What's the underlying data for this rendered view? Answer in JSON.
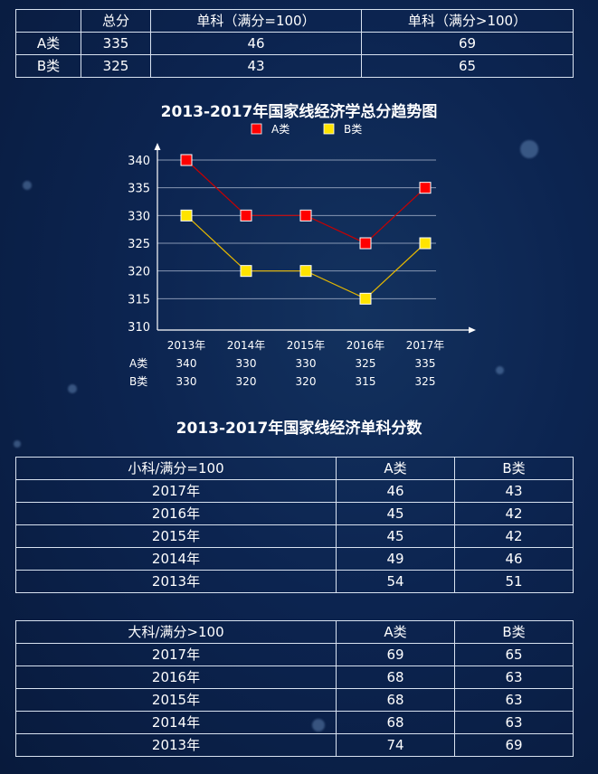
{
  "summary_table": {
    "headers": [
      "",
      "总分",
      "单科（满分=100）",
      "单科（满分>100）"
    ],
    "rows": [
      [
        "A类",
        "335",
        "46",
        "69"
      ],
      [
        "B类",
        "325",
        "43",
        "65"
      ]
    ]
  },
  "chart_data": {
    "type": "line",
    "title": "2013-2017年国家线经济学总分趋势图",
    "categories": [
      "2013年",
      "2014年",
      "2015年",
      "2016年",
      "2017年"
    ],
    "series": [
      {
        "name": "A类",
        "values": [
          340,
          330,
          330,
          325,
          335
        ],
        "color": "#ff0000"
      },
      {
        "name": "B类",
        "values": [
          330,
          320,
          320,
          315,
          325
        ],
        "color": "#ffe400"
      }
    ],
    "yticks": [
      310,
      315,
      320,
      325,
      330,
      335,
      340
    ],
    "ylim": [
      310,
      340
    ],
    "grid": true,
    "legend": "top"
  },
  "single_title": "2013-2017年国家线经济单科分数",
  "small_table": {
    "headers": [
      "小科/满分=100",
      "A类",
      "B类"
    ],
    "rows": [
      [
        "2017年",
        "46",
        "43"
      ],
      [
        "2016年",
        "45",
        "42"
      ],
      [
        "2015年",
        "45",
        "42"
      ],
      [
        "2014年",
        "49",
        "46"
      ],
      [
        "2013年",
        "54",
        "51"
      ]
    ]
  },
  "large_table": {
    "headers": [
      "大科/满分>100",
      "A类",
      "B类"
    ],
    "rows": [
      [
        "2017年",
        "69",
        "65"
      ],
      [
        "2016年",
        "68",
        "63"
      ],
      [
        "2015年",
        "68",
        "63"
      ],
      [
        "2014年",
        "68",
        "63"
      ],
      [
        "2013年",
        "74",
        "69"
      ]
    ]
  }
}
